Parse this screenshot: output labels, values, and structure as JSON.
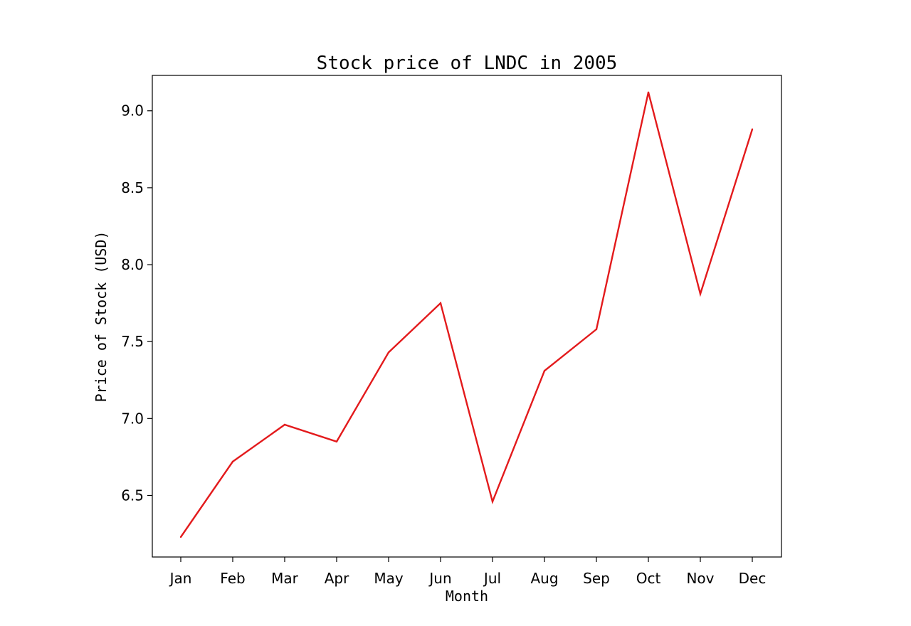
{
  "chart_data": {
    "type": "line",
    "title": "Stock price of LNDC in 2005",
    "xlabel": "Month",
    "ylabel": "Price of Stock (USD)",
    "categories": [
      "Jan",
      "Feb",
      "Mar",
      "Apr",
      "May",
      "Jun",
      "Jul",
      "Aug",
      "Sep",
      "Oct",
      "Nov",
      "Dec"
    ],
    "series": [
      {
        "color": "#e31a1c",
        "values": [
          6.23,
          6.72,
          6.96,
          6.85,
          7.43,
          7.75,
          6.46,
          7.31,
          7.58,
          9.12,
          7.81,
          8.88
        ]
      }
    ],
    "yticks": [
      6.5,
      7.0,
      7.5,
      8.0,
      8.5,
      9.0
    ],
    "ytick_labels": [
      "6.5",
      "7.0",
      "7.5",
      "8.0",
      "8.5",
      "9.0"
    ],
    "ylim": [
      6.1,
      9.23
    ],
    "grid": false,
    "legend": "none"
  }
}
